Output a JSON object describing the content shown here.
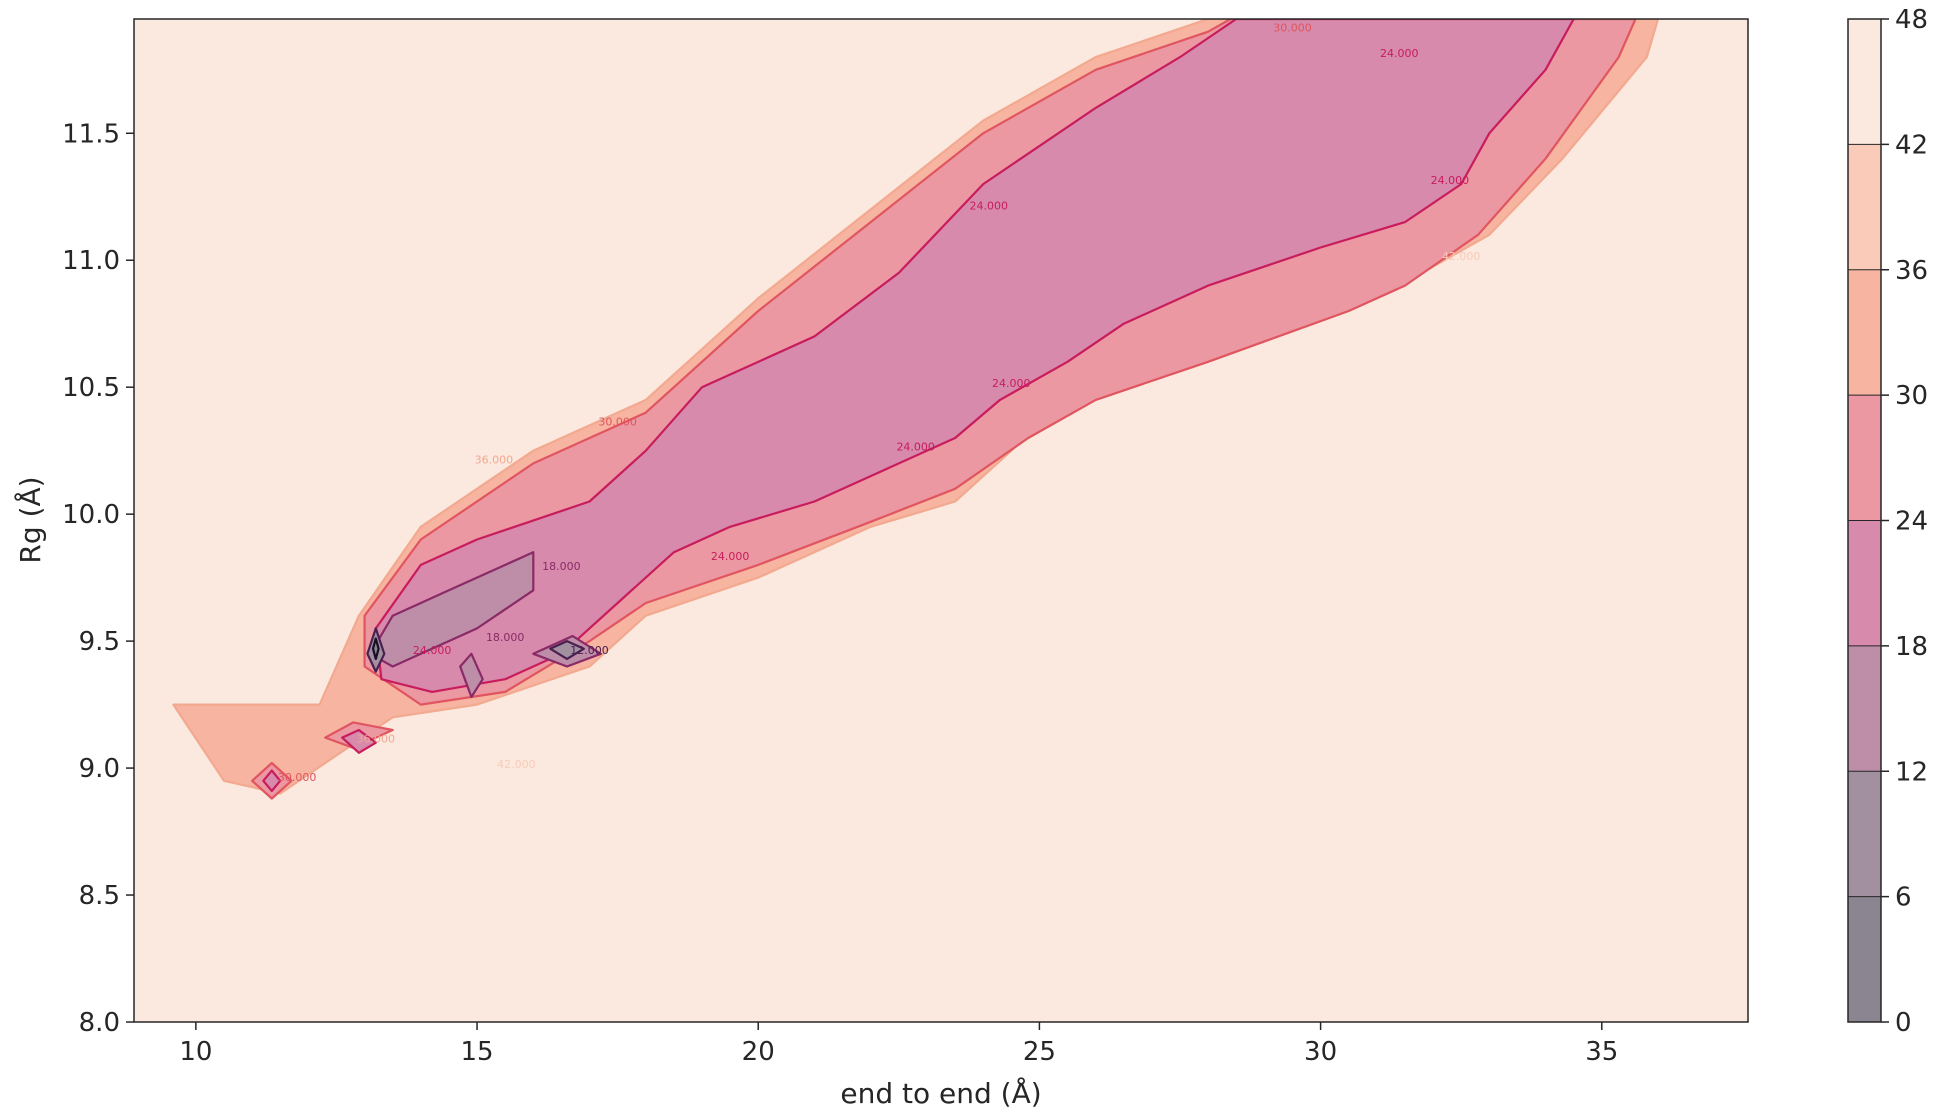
{
  "chart_data": {
    "type": "contour",
    "xlabel": "end to end (Å)",
    "ylabel": "Rg (Å)",
    "xlim": [
      8.9,
      37.6
    ],
    "ylim": [
      8.0,
      11.95
    ],
    "x_ticks": [
      10,
      15,
      20,
      25,
      30,
      35
    ],
    "y_ticks": [
      8.0,
      8.5,
      9.0,
      9.5,
      10.0,
      10.5,
      11.0,
      11.5
    ],
    "colorbar": {
      "ticks": [
        0,
        6,
        12,
        18,
        24,
        30,
        36,
        42,
        48
      ],
      "bands": [
        {
          "range": [
            0,
            6
          ],
          "color": "#8a8591"
        },
        {
          "range": [
            6,
            12
          ],
          "color": "#a28fa0"
        },
        {
          "range": [
            12,
            18
          ],
          "color": "#be8ea8"
        },
        {
          "range": [
            18,
            24
          ],
          "color": "#d78aab"
        },
        {
          "range": [
            24,
            30
          ],
          "color": "#ec98a2"
        },
        {
          "range": [
            30,
            36
          ],
          "color": "#f6b4a1"
        },
        {
          "range": [
            36,
            42
          ],
          "color": "#f9cbb8"
        },
        {
          "range": [
            42,
            48
          ],
          "color": "#fbe8de"
        }
      ]
    },
    "levels": [
      {
        "value": 36,
        "color": "#f6b4a1",
        "line": "#f2a990",
        "regions": [
          [
            [
              9.6,
              9.25
            ],
            [
              12.2,
              9.25
            ],
            [
              12.9,
              9.6
            ],
            [
              14,
              9.95
            ],
            [
              16,
              10.25
            ],
            [
              18,
              10.45
            ],
            [
              20,
              10.85
            ],
            [
              22,
              11.2
            ],
            [
              24,
              11.55
            ],
            [
              26,
              11.8
            ],
            [
              28,
              11.95
            ],
            [
              36,
              11.95
            ],
            [
              35.8,
              11.8
            ],
            [
              34.3,
              11.4
            ],
            [
              33,
              11.1
            ],
            [
              31.8,
              10.95
            ],
            [
              30.8,
              10.85
            ],
            [
              28,
              10.65
            ],
            [
              26,
              10.5
            ],
            [
              25,
              10.35
            ],
            [
              23.5,
              10.05
            ],
            [
              22,
              9.95
            ],
            [
              20,
              9.75
            ],
            [
              18,
              9.6
            ],
            [
              17,
              9.4
            ],
            [
              15,
              9.25
            ],
            [
              13.5,
              9.2
            ],
            [
              12.5,
              9.05
            ],
            [
              11.5,
              8.9
            ],
            [
              10.5,
              8.95
            ]
          ]
        ]
      },
      {
        "value": 30,
        "color": "#ec98a2",
        "line": "#e0555f",
        "regions": [
          [
            [
              13,
              9.6
            ],
            [
              14,
              9.9
            ],
            [
              16,
              10.2
            ],
            [
              18,
              10.4
            ],
            [
              20,
              10.8
            ],
            [
              22,
              11.15
            ],
            [
              24,
              11.5
            ],
            [
              26,
              11.75
            ],
            [
              28,
              11.9
            ],
            [
              28.4,
              11.95
            ],
            [
              35.6,
              11.95
            ],
            [
              35.3,
              11.8
            ],
            [
              34,
              11.4
            ],
            [
              32.8,
              11.1
            ],
            [
              31.5,
              10.9
            ],
            [
              30.5,
              10.8
            ],
            [
              28,
              10.6
            ],
            [
              26,
              10.45
            ],
            [
              24.8,
              10.3
            ],
            [
              23.5,
              10.1
            ],
            [
              22,
              9.97
            ],
            [
              20,
              9.8
            ],
            [
              18,
              9.65
            ],
            [
              17,
              9.5
            ],
            [
              15.5,
              9.3
            ],
            [
              14,
              9.25
            ],
            [
              13,
              9.4
            ]
          ],
          [
            [
              12.3,
              9.12
            ],
            [
              12.8,
              9.18
            ],
            [
              13.5,
              9.15
            ],
            [
              12.8,
              9.08
            ]
          ],
          [
            [
              11,
              8.95
            ],
            [
              11.35,
              9.02
            ],
            [
              11.7,
              8.95
            ],
            [
              11.35,
              8.88
            ]
          ]
        ]
      },
      {
        "value": 24,
        "color": "#d78aab",
        "line": "#c81c5c",
        "regions": [
          [
            [
              13.2,
              9.55
            ],
            [
              14,
              9.8
            ],
            [
              15,
              9.9
            ],
            [
              17,
              10.05
            ],
            [
              18,
              10.25
            ],
            [
              19,
              10.5
            ],
            [
              21,
              10.7
            ],
            [
              22.5,
              10.95
            ],
            [
              24,
              11.3
            ],
            [
              26,
              11.6
            ],
            [
              27.5,
              11.8
            ],
            [
              28.5,
              11.95
            ],
            [
              34.5,
              11.95
            ],
            [
              34,
              11.75
            ],
            [
              33,
              11.5
            ],
            [
              32.5,
              11.3
            ],
            [
              31.5,
              11.15
            ],
            [
              30,
              11.05
            ],
            [
              28,
              10.9
            ],
            [
              26.5,
              10.75
            ],
            [
              25.5,
              10.6
            ],
            [
              24.3,
              10.45
            ],
            [
              23.5,
              10.3
            ],
            [
              22,
              10.15
            ],
            [
              21,
              10.05
            ],
            [
              19.5,
              9.95
            ],
            [
              18.5,
              9.85
            ],
            [
              17.5,
              9.65
            ],
            [
              16.5,
              9.45
            ],
            [
              15.5,
              9.35
            ],
            [
              14.2,
              9.3
            ],
            [
              13.3,
              9.35
            ]
          ],
          [
            [
              12.6,
              9.12
            ],
            [
              12.9,
              9.15
            ],
            [
              13.2,
              9.1
            ],
            [
              12.9,
              9.06
            ]
          ],
          [
            [
              11.2,
              8.95
            ],
            [
              11.35,
              8.99
            ],
            [
              11.5,
              8.95
            ],
            [
              11.35,
              8.91
            ]
          ]
        ]
      },
      {
        "value": 18,
        "color": "#be8ea8",
        "line": "#8a2a66",
        "regions": [
          [
            [
              13.1,
              9.45
            ],
            [
              13.5,
              9.6
            ],
            [
              14.5,
              9.7
            ],
            [
              16,
              9.85
            ],
            [
              16,
              9.7
            ],
            [
              15,
              9.55
            ],
            [
              14,
              9.45
            ],
            [
              13.5,
              9.4
            ]
          ],
          [
            [
              16,
              9.45
            ],
            [
              16.7,
              9.52
            ],
            [
              17.2,
              9.45
            ],
            [
              16.6,
              9.4
            ]
          ],
          [
            [
              14.7,
              9.4
            ],
            [
              14.9,
              9.45
            ],
            [
              15.1,
              9.35
            ],
            [
              14.9,
              9.28
            ]
          ]
        ]
      },
      {
        "value": 12,
        "color": "#a28fa0",
        "line": "#4a2050",
        "regions": [
          [
            [
              13.05,
              9.45
            ],
            [
              13.2,
              9.55
            ],
            [
              13.35,
              9.45
            ],
            [
              13.2,
              9.38
            ]
          ],
          [
            [
              16.3,
              9.47
            ],
            [
              16.6,
              9.5
            ],
            [
              16.9,
              9.47
            ],
            [
              16.6,
              9.43
            ]
          ]
        ]
      },
      {
        "value": 6,
        "color": "#8a8591",
        "line": "#1a0f26",
        "regions": [
          [
            [
              13.15,
              9.47
            ],
            [
              13.2,
              9.51
            ],
            [
              13.25,
              9.47
            ],
            [
              13.2,
              9.43
            ]
          ]
        ]
      }
    ],
    "contour_labels": [
      {
        "text": "30.000",
        "x": 29.5,
        "y": 11.9,
        "color": "#e0555f"
      },
      {
        "text": "24.000",
        "x": 31.4,
        "y": 11.8,
        "color": "#c81c5c"
      },
      {
        "text": "24.000",
        "x": 24.1,
        "y": 11.2,
        "color": "#c81c5c"
      },
      {
        "text": "24.000",
        "x": 32.3,
        "y": 11.3,
        "color": "#c81c5c"
      },
      {
        "text": "24.000",
        "x": 24.5,
        "y": 10.5,
        "color": "#c81c5c"
      },
      {
        "text": "24.000",
        "x": 22.8,
        "y": 10.25,
        "color": "#c81c5c"
      },
      {
        "text": "24.000",
        "x": 19.5,
        "y": 9.82,
        "color": "#c81c5c"
      },
      {
        "text": "30.000",
        "x": 17.5,
        "y": 10.35,
        "color": "#e0555f"
      },
      {
        "text": "36.000",
        "x": 15.3,
        "y": 10.2,
        "color": "#f2a990"
      },
      {
        "text": "18.000",
        "x": 16.5,
        "y": 9.78,
        "color": "#8a2a66"
      },
      {
        "text": "18.000",
        "x": 15.5,
        "y": 9.5,
        "color": "#8a2a66"
      },
      {
        "text": "24.000",
        "x": 14.2,
        "y": 9.45,
        "color": "#c81c5c"
      },
      {
        "text": "42.000",
        "x": 15.7,
        "y": 9.0,
        "color": "#f9cbb8"
      },
      {
        "text": "42.000",
        "x": 32.5,
        "y": 11.0,
        "color": "#f9cbb8"
      },
      {
        "text": "12.000",
        "x": 17.0,
        "y": 9.45,
        "color": "#4a2050"
      },
      {
        "text": "36.000",
        "x": 13.2,
        "y": 9.1,
        "color": "#f2a990"
      },
      {
        "text": "30.000",
        "x": 11.8,
        "y": 8.95,
        "color": "#e0555f"
      }
    ]
  }
}
